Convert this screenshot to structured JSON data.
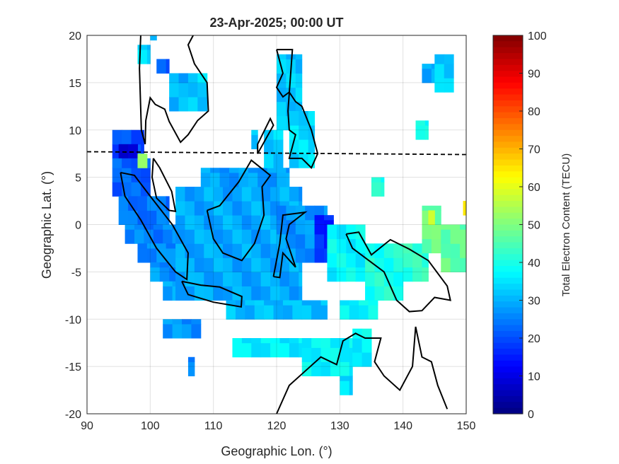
{
  "chart_data": {
    "type": "heatmap",
    "title": "23-Apr-2025; 00:00 UT",
    "xlabel": "Geographic Lon. (°)",
    "ylabel": "Geographic Lat. (°)",
    "xlim": [
      90,
      150
    ],
    "ylim": [
      -20,
      20
    ],
    "xticks": [
      90,
      100,
      110,
      120,
      130,
      140,
      150
    ],
    "yticks": [
      -20,
      -15,
      -10,
      -5,
      0,
      5,
      10,
      15,
      20
    ],
    "grid": true,
    "colorbar": {
      "label": "Total Electron Content (TECU)",
      "range": [
        0,
        100
      ],
      "ticks": [
        0,
        10,
        20,
        30,
        40,
        50,
        60,
        70,
        80,
        90,
        100
      ],
      "colormap": "jet",
      "placement": "right"
    },
    "magnetic_equator_lat_approx": 7.5,
    "cells_lon0_lon1_lat0_lat1_tec": [
      [
        94,
        99,
        7,
        10,
        20
      ],
      [
        95,
        98,
        7,
        8.5,
        10
      ],
      [
        94,
        100,
        3,
        7,
        22
      ],
      [
        98,
        99.5,
        6,
        7.5,
        55
      ],
      [
        95,
        103,
        0,
        3,
        24
      ],
      [
        96,
        104,
        -2,
        0,
        25
      ],
      [
        98,
        106,
        -4,
        -2,
        26
      ],
      [
        100,
        108,
        -6,
        -4,
        27
      ],
      [
        102,
        110,
        -8,
        -6,
        28
      ],
      [
        104,
        124,
        -8,
        4,
        29
      ],
      [
        108,
        122,
        4,
        6,
        28
      ],
      [
        112,
        128,
        -10,
        -8,
        31
      ],
      [
        120,
        128,
        -4,
        2,
        27
      ],
      [
        126,
        129,
        -4,
        1,
        16
      ],
      [
        128,
        134,
        -6,
        0,
        37
      ],
      [
        134,
        140,
        -8,
        -2,
        40
      ],
      [
        130,
        136,
        -10,
        -8,
        37
      ],
      [
        113,
        125,
        -14,
        -12,
        36
      ],
      [
        124,
        132,
        -16,
        -12,
        37
      ],
      [
        132,
        135,
        -15,
        -11,
        37
      ],
      [
        130,
        132,
        -18,
        -16,
        34
      ],
      [
        106,
        107,
        -16,
        -14,
        24
      ],
      [
        102,
        108,
        -12,
        -10,
        27
      ],
      [
        118,
        121,
        6,
        10,
        33
      ],
      [
        120,
        124,
        10,
        18,
        32
      ],
      [
        122,
        126,
        6,
        12,
        34
      ],
      [
        98,
        100,
        17,
        19,
        33
      ],
      [
        101,
        103,
        16,
        17.5,
        20
      ],
      [
        103,
        106,
        12,
        16,
        30
      ],
      [
        106,
        109,
        12,
        16,
        33
      ],
      [
        100,
        101,
        19.5,
        20,
        33
      ],
      [
        140,
        144,
        -6,
        -2,
        42
      ],
      [
        143,
        146,
        -3,
        2,
        48
      ],
      [
        146,
        150,
        -5,
        0,
        47
      ],
      [
        149.5,
        150,
        1,
        2.5,
        62
      ],
      [
        144,
        145,
        0,
        1.5,
        55
      ],
      [
        142,
        144,
        9,
        11,
        38
      ],
      [
        143,
        145,
        15,
        17,
        28
      ],
      [
        145,
        148,
        14,
        18,
        33
      ],
      [
        116,
        117,
        8,
        10,
        33
      ],
      [
        135,
        137,
        3,
        5,
        40
      ]
    ]
  }
}
